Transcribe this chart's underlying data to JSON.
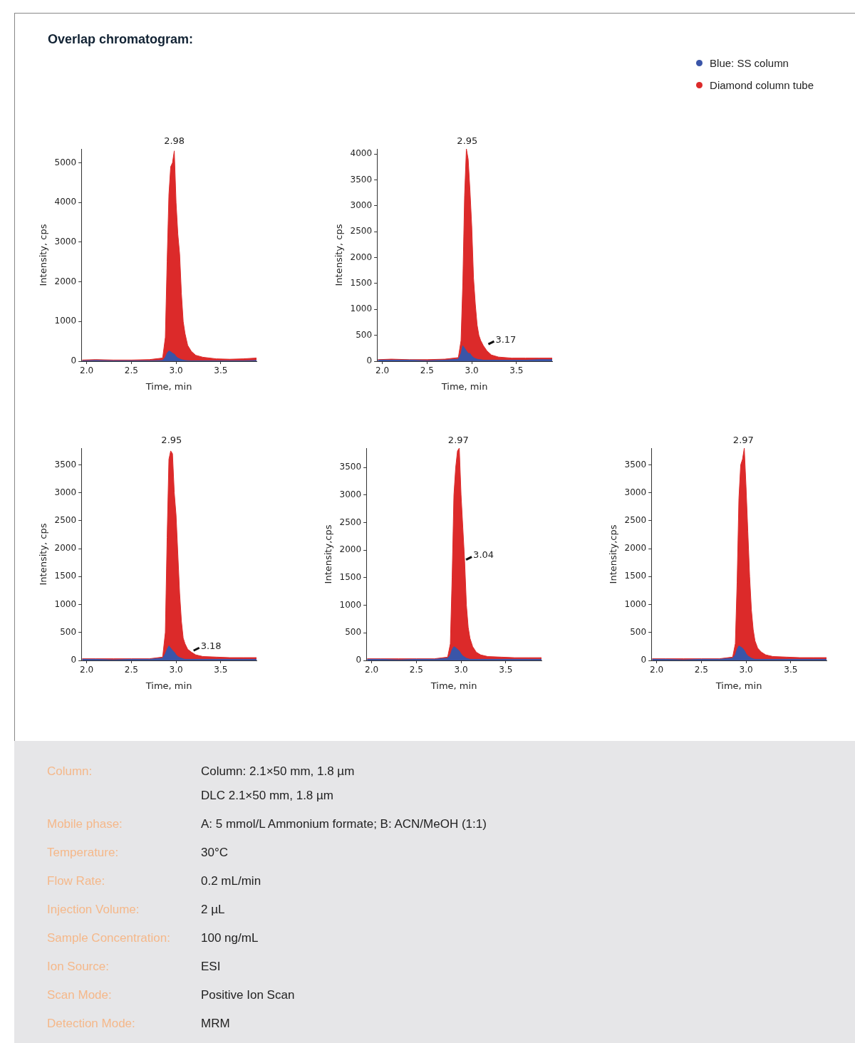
{
  "chart_data": [
    {
      "type": "area",
      "title": "Overlap chromatogram:",
      "xlabel": "Time, min",
      "ylabel": "Intensity, cps",
      "legend": "top right",
      "grid": false,
      "x": [
        1.95,
        2.1,
        2.3,
        2.5,
        2.7,
        2.85,
        2.88,
        2.9,
        2.92,
        2.94,
        2.96,
        2.98,
        3.0,
        3.02,
        3.04,
        3.06,
        3.08,
        3.1,
        3.13,
        3.17,
        3.22,
        3.3,
        3.45,
        3.6,
        3.75,
        3.9
      ],
      "xlim": [
        1.94,
        3.9
      ],
      "xticks": [
        {
          "value": 2,
          "label": "2.0"
        },
        {
          "value": 2.5,
          "label": "2.5"
        },
        {
          "value": 3,
          "label": "3.0"
        },
        {
          "value": 3.5,
          "label": "3.5"
        }
      ],
      "ylim": [
        0,
        5350
      ],
      "yticks": [
        0,
        1000,
        2000,
        3000,
        4000,
        5000
      ],
      "annotations": [
        {
          "text": "2.98",
          "x": 2.98,
          "y": 5350
        }
      ],
      "series": [
        {
          "name": "Blue: SS column",
          "color": "#3a55a8",
          "values": [
            10,
            20,
            10,
            10,
            10,
            20,
            100,
            200,
            260,
            240,
            200,
            180,
            120,
            80,
            60,
            40,
            30,
            20,
            15,
            10,
            10,
            10,
            10,
            10,
            10,
            20
          ]
        },
        {
          "name": "Diamond column tube",
          "color": "#dc2a2a",
          "values": [
            30,
            40,
            30,
            30,
            40,
            80,
            600,
            2500,
            4200,
            4900,
            5000,
            5300,
            4000,
            3200,
            2700,
            1700,
            1000,
            700,
            400,
            250,
            150,
            100,
            60,
            50,
            60,
            80
          ]
        }
      ]
    },
    {
      "type": "area",
      "xlabel": "Time, min",
      "ylabel": "Intensity, cps",
      "grid": false,
      "x": [
        1.95,
        2.1,
        2.3,
        2.5,
        2.7,
        2.85,
        2.88,
        2.9,
        2.92,
        2.94,
        2.96,
        2.98,
        3.0,
        3.02,
        3.04,
        3.06,
        3.08,
        3.1,
        3.13,
        3.17,
        3.22,
        3.3,
        3.45,
        3.6,
        3.75,
        3.9
      ],
      "xlim": [
        1.94,
        3.9
      ],
      "xticks": [
        {
          "value": 2,
          "label": "2.0"
        },
        {
          "value": 2.5,
          "label": "2.5"
        },
        {
          "value": 3,
          "label": "3.0"
        },
        {
          "value": 3.5,
          "label": "3.5"
        }
      ],
      "ylim": [
        0,
        4100
      ],
      "yticks": [
        0,
        500,
        1000,
        1500,
        2000,
        2500,
        3000,
        3500,
        4000
      ],
      "annotations": [
        {
          "text": "2.95",
          "x": 2.95,
          "y": 4100
        },
        {
          "text": "3.17",
          "x": 3.17,
          "y": 300
        }
      ],
      "series": [
        {
          "color": "#3a55a8",
          "values": [
            20,
            20,
            20,
            10,
            20,
            40,
            150,
            300,
            250,
            200,
            150,
            150,
            100,
            70,
            50,
            40,
            30,
            30,
            20,
            20,
            20,
            20,
            20,
            20,
            30,
            30
          ]
        },
        {
          "color": "#dc2a2a",
          "values": [
            30,
            40,
            30,
            30,
            40,
            70,
            400,
            1500,
            3200,
            4100,
            3900,
            3300,
            2600,
            1600,
            1100,
            700,
            500,
            400,
            300,
            200,
            120,
            80,
            60,
            60,
            60,
            60
          ]
        }
      ]
    },
    {
      "type": "area",
      "xlabel": "Time, min",
      "ylabel": "Intensity, cps",
      "grid": false,
      "x": [
        1.95,
        2.1,
        2.3,
        2.5,
        2.7,
        2.85,
        2.88,
        2.9,
        2.92,
        2.94,
        2.96,
        2.98,
        3.0,
        3.02,
        3.04,
        3.06,
        3.08,
        3.1,
        3.13,
        3.17,
        3.22,
        3.3,
        3.45,
        3.6,
        3.75,
        3.9
      ],
      "xlim": [
        1.94,
        3.9
      ],
      "xticks": [
        {
          "value": 2,
          "label": "2.0"
        },
        {
          "value": 2.5,
          "label": "2.5"
        },
        {
          "value": 3,
          "label": "3.0"
        },
        {
          "value": 3.5,
          "label": "3.5"
        }
      ],
      "ylim": [
        0,
        3800
      ],
      "yticks": [
        0,
        500,
        1000,
        1500,
        2000,
        2500,
        3000,
        3500
      ],
      "annotations": [
        {
          "text": "2.95",
          "x": 2.95,
          "y": 3800
        },
        {
          "text": "3.18",
          "x": 3.18,
          "y": 150
        }
      ],
      "series": [
        {
          "color": "#3a55a8",
          "values": [
            20,
            20,
            10,
            20,
            20,
            40,
            120,
            200,
            260,
            220,
            180,
            150,
            100,
            70,
            50,
            40,
            30,
            20,
            20,
            20,
            20,
            20,
            20,
            20,
            20,
            20
          ]
        },
        {
          "color": "#dc2a2a",
          "values": [
            30,
            30,
            30,
            30,
            30,
            60,
            500,
            2200,
            3600,
            3750,
            3700,
            3000,
            2600,
            1900,
            1200,
            700,
            400,
            300,
            200,
            150,
            100,
            70,
            60,
            50,
            50,
            50
          ]
        }
      ]
    },
    {
      "type": "area",
      "xlabel": "Time, min",
      "ylabel": "Intensity,cps",
      "grid": false,
      "x": [
        1.95,
        2.1,
        2.3,
        2.5,
        2.7,
        2.85,
        2.88,
        2.9,
        2.92,
        2.94,
        2.96,
        2.98,
        3.0,
        3.02,
        3.04,
        3.06,
        3.08,
        3.1,
        3.13,
        3.17,
        3.22,
        3.3,
        3.45,
        3.6,
        3.75,
        3.9
      ],
      "xlim": [
        1.94,
        3.9
      ],
      "xticks": [
        {
          "value": 2,
          "label": "2.0"
        },
        {
          "value": 2.5,
          "label": "2.5"
        },
        {
          "value": 3,
          "label": "3.0"
        },
        {
          "value": 3.5,
          "label": "3.5"
        }
      ],
      "ylim": [
        0,
        3850
      ],
      "yticks": [
        0,
        500,
        1000,
        1500,
        2000,
        2500,
        3000,
        3500
      ],
      "annotations": [
        {
          "text": "2.97",
          "x": 2.97,
          "y": 3850
        },
        {
          "text": "3.04",
          "x": 3.04,
          "y": 1800
        }
      ],
      "series": [
        {
          "color": "#3a55a8",
          "values": [
            20,
            20,
            10,
            20,
            20,
            40,
            100,
            200,
            250,
            230,
            200,
            170,
            120,
            80,
            60,
            40,
            30,
            20,
            20,
            20,
            20,
            20,
            20,
            20,
            20,
            20
          ]
        },
        {
          "color": "#dc2a2a",
          "values": [
            30,
            30,
            30,
            30,
            30,
            60,
            300,
            1500,
            3000,
            3500,
            3800,
            3850,
            3000,
            2400,
            1800,
            1000,
            600,
            400,
            250,
            150,
            100,
            70,
            60,
            50,
            50,
            50
          ]
        }
      ]
    },
    {
      "type": "area",
      "xlabel": "Time, min",
      "ylabel": "Intensity,cps",
      "grid": false,
      "x": [
        1.95,
        2.1,
        2.3,
        2.5,
        2.7,
        2.85,
        2.88,
        2.9,
        2.92,
        2.94,
        2.96,
        2.98,
        3.0,
        3.02,
        3.04,
        3.06,
        3.08,
        3.1,
        3.13,
        3.17,
        3.22,
        3.3,
        3.45,
        3.6,
        3.75,
        3.9
      ],
      "xlim": [
        1.94,
        3.9
      ],
      "xticks": [
        {
          "value": 2,
          "label": "2.0"
        },
        {
          "value": 2.5,
          "label": "2.5"
        },
        {
          "value": 3,
          "label": "3.0"
        },
        {
          "value": 3.5,
          "label": "3.5"
        }
      ],
      "ylim": [
        0,
        3800
      ],
      "yticks": [
        0,
        500,
        1000,
        1500,
        2000,
        2500,
        3000,
        3500
      ],
      "annotations": [
        {
          "text": "2.97",
          "x": 2.97,
          "y": 3800
        }
      ],
      "series": [
        {
          "color": "#3a55a8",
          "values": [
            20,
            20,
            10,
            20,
            20,
            40,
            100,
            200,
            260,
            240,
            220,
            180,
            120,
            80,
            60,
            40,
            30,
            20,
            20,
            20,
            20,
            20,
            20,
            20,
            20,
            20
          ]
        },
        {
          "color": "#dc2a2a",
          "values": [
            30,
            30,
            30,
            30,
            30,
            60,
            300,
            1400,
            2900,
            3500,
            3600,
            3800,
            3100,
            2300,
            1500,
            900,
            550,
            350,
            220,
            150,
            100,
            70,
            60,
            50,
            50,
            50
          ]
        }
      ]
    },
    {
      "type": "other",
      "annotations": [
        "Column:",
        "Column: 2.1×50 mm, 1.8 µm\nDLC 2.1×50 mm, 1.8 µm",
        "Mobile phase:",
        "A: 5 mmol/L Ammonium formate; B: ACN/MeOH (1:1)",
        "Temperature:",
        "30°C",
        "Flow Rate:",
        "0.2 mL/min",
        "Injection Volume:",
        "2 µL",
        "Sample Concentration:",
        "100 ng/mL",
        "Ion Source:",
        "ESI",
        "Scan Mode:",
        "Positive Ion Scan",
        "Detection Mode:",
        "MRM"
      ]
    }
  ]
}
